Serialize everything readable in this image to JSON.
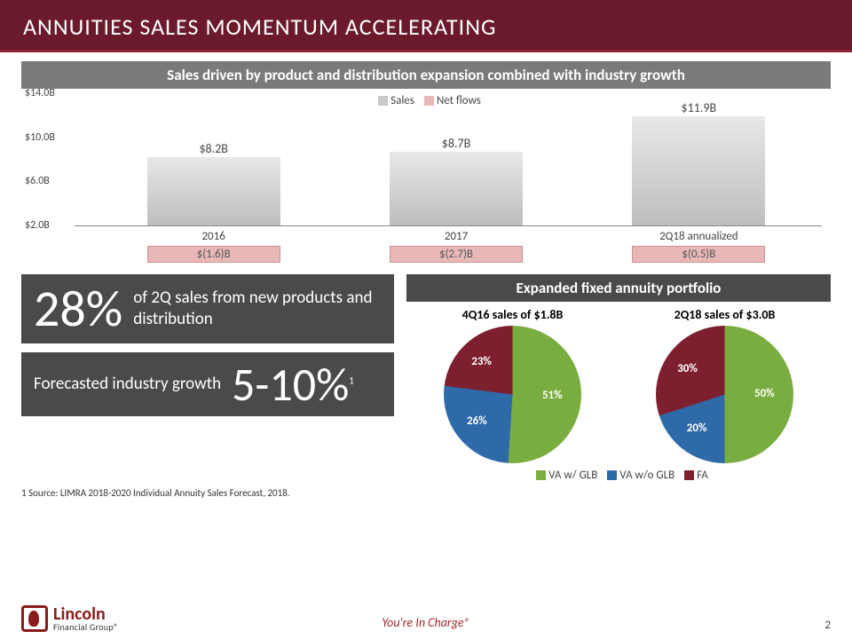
{
  "header": {
    "title": "ANNUITIES SALES MOMENTUM ACCELERATING"
  },
  "subhead": "Sales driven by product and distribution expansion combined with industry growth",
  "barchart": {
    "type": "bar",
    "ylim": [
      2.0,
      14.0
    ],
    "yticks": [
      2.0,
      6.0,
      10.0,
      14.0
    ],
    "ytick_labels": [
      "$2.0B",
      "$6.0B",
      "$10.0B",
      "$14.0B"
    ],
    "categories": [
      "2016",
      "2017",
      "2Q18 annualized"
    ],
    "sales_values": [
      8.2,
      8.7,
      11.9
    ],
    "sales_labels": [
      "$8.2B",
      "$8.7B",
      "$11.9B"
    ],
    "netflow_labels": [
      "$(1.6)B",
      "$(2.7)B",
      "$(0.5)B"
    ],
    "bar_color_top": "#e8e8e8",
    "bar_color_bottom": "#bdbdbd",
    "netflow_color": "#e8b8b8",
    "legend": [
      {
        "label": "Sales",
        "color": "#c8c8c8"
      },
      {
        "label": "Net flows",
        "color": "#e8b8b8"
      }
    ]
  },
  "stat1": {
    "value": "28%",
    "text": "of 2Q sales from new products and distribution"
  },
  "stat2": {
    "label": "Forecasted industry growth",
    "value": "5-10%",
    "sup": "1"
  },
  "pies": {
    "header": "Expanded fixed annuity portfolio",
    "legend": [
      {
        "label": "VA w/ GLB",
        "color": "#7aad3f"
      },
      {
        "label": "VA w/o GLB",
        "color": "#2f6aa8"
      },
      {
        "label": "FA",
        "color": "#7d1f2e"
      }
    ],
    "charts": [
      {
        "title": "4Q16 sales of $1.8B",
        "slices": [
          {
            "label": "51%",
            "value": 51,
            "color": "#7aad3f"
          },
          {
            "label": "26%",
            "value": 26,
            "color": "#2f6aa8"
          },
          {
            "label": "23%",
            "value": 23,
            "color": "#7d1f2e"
          }
        ]
      },
      {
        "title": "2Q18 sales of $3.0B",
        "slices": [
          {
            "label": "50%",
            "value": 50,
            "color": "#7aad3f"
          },
          {
            "label": "20%",
            "value": 20,
            "color": "#2f6aa8"
          },
          {
            "label": "30%",
            "value": 30,
            "color": "#7d1f2e"
          }
        ]
      }
    ]
  },
  "footnote": "1 Source: LIMRA 2018-2020 Individual Annuity Sales Forecast, 2018.",
  "footer": {
    "logo_name": "Lincoln",
    "logo_sub": "Financial Group®",
    "tagline": "You're In Charge®",
    "page": "2"
  }
}
